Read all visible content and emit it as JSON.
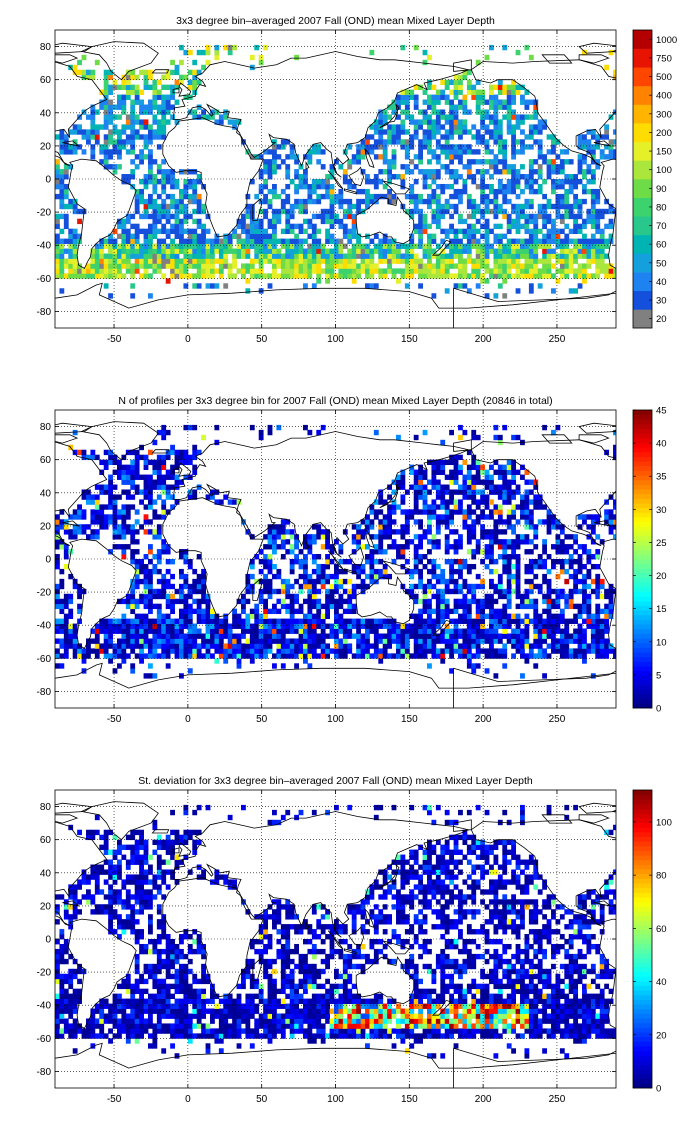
{
  "chart_data": [
    {
      "type": "heatmap",
      "title": "3x3 degree bin–averaged 2007 Fall (OND) mean Mixed Layer Depth",
      "xlabel": "",
      "ylabel": "",
      "xlim": [
        -90,
        290
      ],
      "ylim": [
        -90,
        90
      ],
      "xticks": [
        -50,
        0,
        50,
        100,
        150,
        200,
        250
      ],
      "yticks": [
        80,
        60,
        40,
        20,
        0,
        -20,
        -40,
        -60,
        -80
      ],
      "grid": true,
      "bin_size_deg": 3,
      "colorbar": {
        "scale": "categorical",
        "labels": [
          "20",
          "30",
          "40",
          "50",
          "60",
          "70",
          "80",
          "90",
          "100",
          "150",
          "200",
          "300",
          "400",
          "500",
          "750",
          "1000"
        ],
        "colors": [
          "#808080",
          "#1450dc",
          "#1e82f0",
          "#14a0dc",
          "#00b4b4",
          "#28c88c",
          "#3cd26e",
          "#6edc46",
          "#aae63c",
          "#e6f028",
          "#ffdc00",
          "#ffb400",
          "#ff8200",
          "#ff4600",
          "#e61400",
          "#b40000"
        ],
        "position": "right"
      }
    },
    {
      "type": "heatmap",
      "title": "N of profiles per 3x3 degree bin for 2007 Fall (OND) mean Mixed Layer Depth  (20846 in total)",
      "xlabel": "",
      "ylabel": "",
      "xlim": [
        -90,
        290
      ],
      "ylim": [
        -90,
        90
      ],
      "xticks": [
        -50,
        0,
        50,
        100,
        150,
        200,
        250
      ],
      "yticks": [
        80,
        60,
        40,
        20,
        0,
        -20,
        -40,
        -60,
        -80
      ],
      "grid": true,
      "bin_size_deg": 3,
      "total_profiles": 20846,
      "colorbar": {
        "scale": "linear",
        "range": [
          0,
          45
        ],
        "ticks": [
          0,
          5,
          10,
          15,
          20,
          25,
          30,
          35,
          40,
          45
        ],
        "colormap": "jet",
        "position": "right"
      }
    },
    {
      "type": "heatmap",
      "title": "St. deviation for 3x3 degree bin–averaged 2007 Fall (OND) mean Mixed Layer Depth",
      "xlabel": "",
      "ylabel": "",
      "xlim": [
        -90,
        290
      ],
      "ylim": [
        -90,
        90
      ],
      "xticks": [
        -50,
        0,
        50,
        100,
        150,
        200,
        250
      ],
      "yticks": [
        80,
        60,
        40,
        20,
        0,
        -20,
        -40,
        -60,
        -80
      ],
      "grid": true,
      "bin_size_deg": 3,
      "colorbar": {
        "scale": "linear",
        "range": [
          0,
          112
        ],
        "ticks": [
          0,
          20,
          40,
          60,
          80,
          100
        ],
        "colormap": "jet",
        "position": "right"
      }
    }
  ],
  "colors": {
    "background": "#ffffff",
    "axes": "#000000",
    "grid": "#000000",
    "coastline": "#000000",
    "missing_bin": "#808080"
  }
}
